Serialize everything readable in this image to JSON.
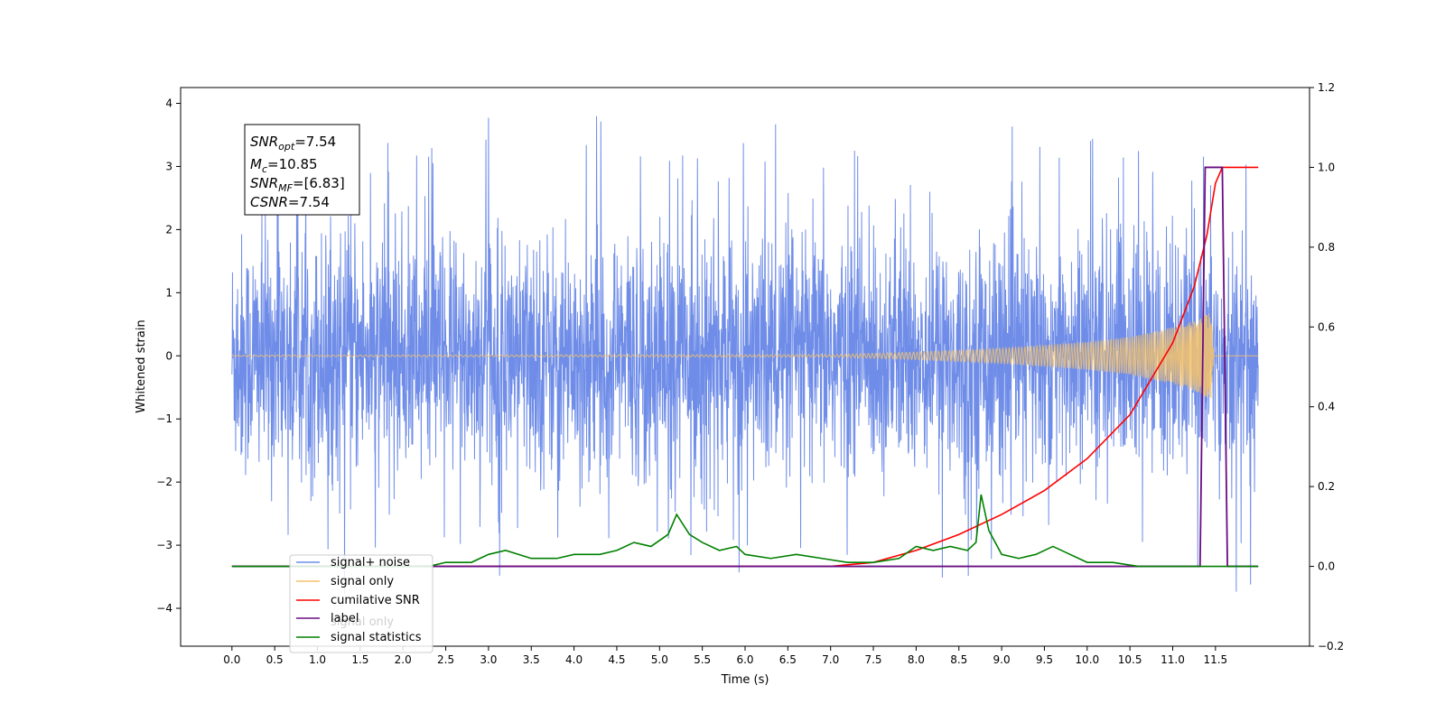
{
  "chart_data": {
    "type": "line",
    "xlabel": "Time (s)",
    "ylabel": "Whitened strain",
    "xlim": [
      -0.6,
      12.6
    ],
    "ylim": [
      -4.6,
      4.25
    ],
    "ylim_right": [
      -0.2,
      1.2
    ],
    "x_ticks": [
      0.0,
      0.5,
      1.0,
      1.5,
      2.0,
      2.5,
      3.0,
      3.5,
      4.0,
      4.5,
      5.0,
      5.5,
      6.0,
      6.5,
      7.0,
      7.5,
      8.0,
      8.5,
      9.0,
      9.5,
      10.0,
      10.5,
      11.0,
      11.5
    ],
    "x_tick_labels": [
      "0.0",
      "0.5",
      "1.0",
      "1.5",
      "2.0",
      "2.5",
      "3.0",
      "3.5",
      "4.0",
      "4.5",
      "5.0",
      "5.5",
      "6.0",
      "6.5",
      "7.0",
      "7.5",
      "8.0",
      "8.5",
      "9.0",
      "9.5",
      "10.0",
      "10.5",
      "11.0",
      "11.5"
    ],
    "y_ticks": [
      -4,
      -3,
      -2,
      -1,
      0,
      1,
      2,
      3,
      4
    ],
    "y_tick_labels": [
      "−4",
      "−3",
      "−2",
      "−1",
      "0",
      "1",
      "2",
      "3",
      "4"
    ],
    "y_right_ticks": [
      -0.2,
      0.0,
      0.2,
      0.4,
      0.6,
      0.8,
      1.0,
      1.2
    ],
    "y_right_tick_labels": [
      "−0.2",
      "0.0",
      "0.2",
      "0.4",
      "0.6",
      "0.8",
      "1.0",
      "1.2"
    ],
    "grid": false,
    "legend_position": "lower-left",
    "annotation": {
      "lines": [
        {
          "base": "SNR",
          "sub": "opt",
          "value": "=7.54"
        },
        {
          "base": "M",
          "sub": "c",
          "value": "=10.85"
        },
        {
          "base": "SNR",
          "sub": "MF",
          "value": "=[6.83]"
        },
        {
          "base": "CSNR",
          "sub": "",
          "value": "=7.54"
        }
      ]
    },
    "series": [
      {
        "name": "signal+ noise",
        "axis": "left",
        "color": "#6f8de8",
        "description_x_range": [
          0.0,
          12.0
        ],
        "envelope": {
          "typical_max": 2.3,
          "typical_min": -2.1,
          "peak_max": 3.85,
          "peak_min": -3.95
        }
      },
      {
        "name": "signal only",
        "axis": "left",
        "color": "#f5c26b",
        "amplitude_points": [
          [
            0.0,
            0.01
          ],
          [
            7.0,
            0.02
          ],
          [
            8.0,
            0.06
          ],
          [
            9.0,
            0.12
          ],
          [
            10.0,
            0.22
          ],
          [
            10.5,
            0.3
          ],
          [
            11.0,
            0.45
          ],
          [
            11.3,
            0.58
          ],
          [
            11.45,
            0.7
          ],
          [
            11.48,
            0.0
          ],
          [
            12.0,
            0.0
          ]
        ]
      },
      {
        "name": "cumilative SNR",
        "axis": "right",
        "color": "#ff0000",
        "points": [
          [
            0.0,
            0.0
          ],
          [
            7.0,
            0.0
          ],
          [
            7.5,
            0.01
          ],
          [
            8.0,
            0.04
          ],
          [
            8.5,
            0.08
          ],
          [
            9.0,
            0.13
          ],
          [
            9.5,
            0.19
          ],
          [
            10.0,
            0.27
          ],
          [
            10.5,
            0.38
          ],
          [
            11.0,
            0.56
          ],
          [
            11.25,
            0.7
          ],
          [
            11.4,
            0.83
          ],
          [
            11.5,
            0.96
          ],
          [
            11.58,
            1.0
          ],
          [
            12.0,
            1.0
          ]
        ]
      },
      {
        "name": "label",
        "axis": "right",
        "color": "#6a0d83",
        "points": [
          [
            0.0,
            0.0
          ],
          [
            11.32,
            0.0
          ],
          [
            11.38,
            1.0
          ],
          [
            11.58,
            1.0
          ],
          [
            11.64,
            0.0
          ],
          [
            12.0,
            0.0
          ]
        ]
      },
      {
        "name": "signal statistics",
        "axis": "right",
        "color": "#008000",
        "points": [
          [
            0.0,
            0.0
          ],
          [
            2.3,
            0.0
          ],
          [
            2.5,
            0.01
          ],
          [
            2.8,
            0.01
          ],
          [
            3.0,
            0.03
          ],
          [
            3.2,
            0.04
          ],
          [
            3.5,
            0.02
          ],
          [
            3.8,
            0.02
          ],
          [
            4.0,
            0.03
          ],
          [
            4.3,
            0.03
          ],
          [
            4.5,
            0.04
          ],
          [
            4.7,
            0.06
          ],
          [
            4.9,
            0.05
          ],
          [
            5.1,
            0.08
          ],
          [
            5.2,
            0.13
          ],
          [
            5.35,
            0.08
          ],
          [
            5.5,
            0.06
          ],
          [
            5.7,
            0.04
          ],
          [
            5.9,
            0.05
          ],
          [
            6.0,
            0.03
          ],
          [
            6.3,
            0.02
          ],
          [
            6.6,
            0.03
          ],
          [
            6.9,
            0.02
          ],
          [
            7.2,
            0.01
          ],
          [
            7.5,
            0.01
          ],
          [
            7.8,
            0.02
          ],
          [
            8.0,
            0.05
          ],
          [
            8.2,
            0.04
          ],
          [
            8.4,
            0.05
          ],
          [
            8.6,
            0.04
          ],
          [
            8.7,
            0.06
          ],
          [
            8.76,
            0.18
          ],
          [
            8.85,
            0.09
          ],
          [
            9.0,
            0.03
          ],
          [
            9.2,
            0.02
          ],
          [
            9.4,
            0.03
          ],
          [
            9.6,
            0.05
          ],
          [
            9.8,
            0.03
          ],
          [
            10.0,
            0.01
          ],
          [
            10.3,
            0.01
          ],
          [
            10.6,
            0.0
          ],
          [
            12.0,
            0.0
          ]
        ]
      }
    ]
  },
  "legend": {
    "overlap_text": "signal only"
  }
}
